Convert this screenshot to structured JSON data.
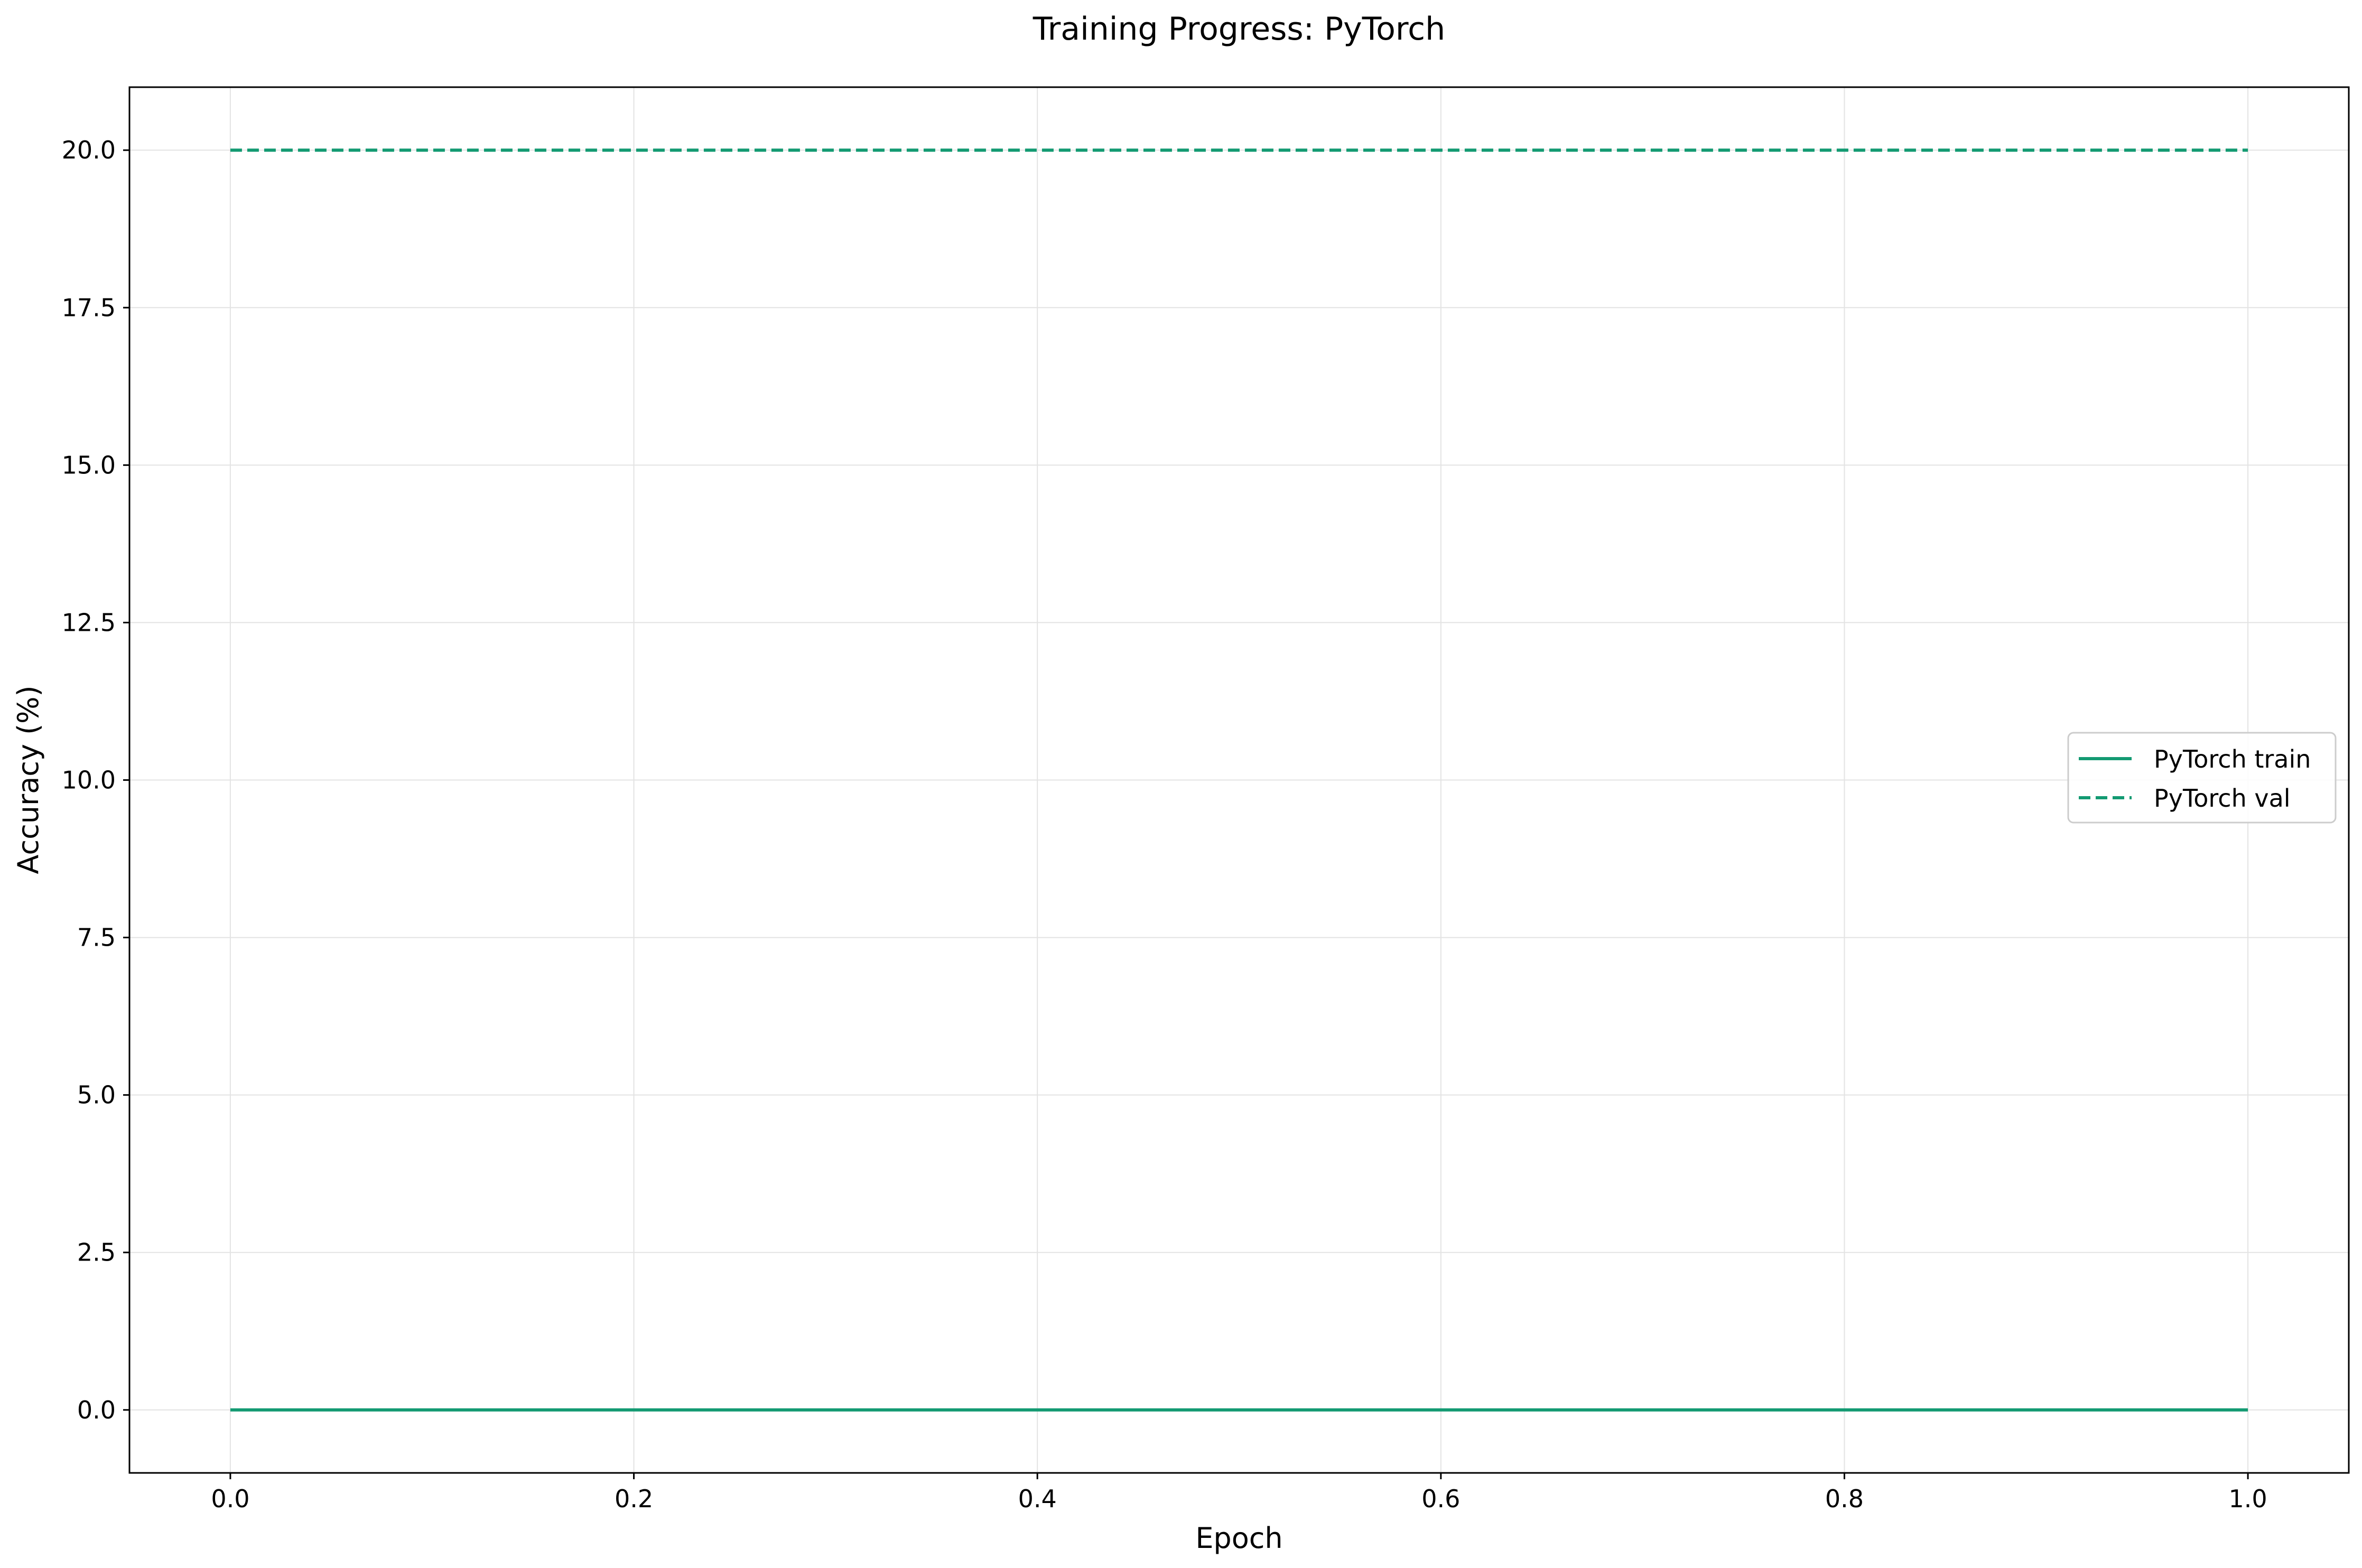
{
  "chart_data": {
    "type": "line",
    "title": "Training Progress: PyTorch",
    "xlabel": "Epoch",
    "ylabel": "Accuracy (%)",
    "xlim": [
      -0.05,
      1.05
    ],
    "ylim": [
      -1.0,
      21.0
    ],
    "xticks": [
      0.0,
      0.2,
      0.4,
      0.6,
      0.8,
      1.0
    ],
    "xtick_labels": [
      "0.0",
      "0.2",
      "0.4",
      "0.6",
      "0.8",
      "1.0"
    ],
    "yticks": [
      0.0,
      2.5,
      5.0,
      7.5,
      10.0,
      12.5,
      15.0,
      17.5,
      20.0
    ],
    "ytick_labels": [
      "0.0",
      "2.5",
      "5.0",
      "7.5",
      "10.0",
      "12.5",
      "15.0",
      "17.5",
      "20.0"
    ],
    "grid": true,
    "legend_position": "center-right",
    "series": [
      {
        "name": "PyTorch train",
        "x": [
          0.0,
          1.0
        ],
        "y": [
          0.0,
          0.0
        ],
        "color": "#139a72",
        "style": "solid"
      },
      {
        "name": "PyTorch val",
        "x": [
          0.0,
          1.0
        ],
        "y": [
          20.0,
          20.0
        ],
        "color": "#139a72",
        "style": "dashed"
      }
    ]
  }
}
